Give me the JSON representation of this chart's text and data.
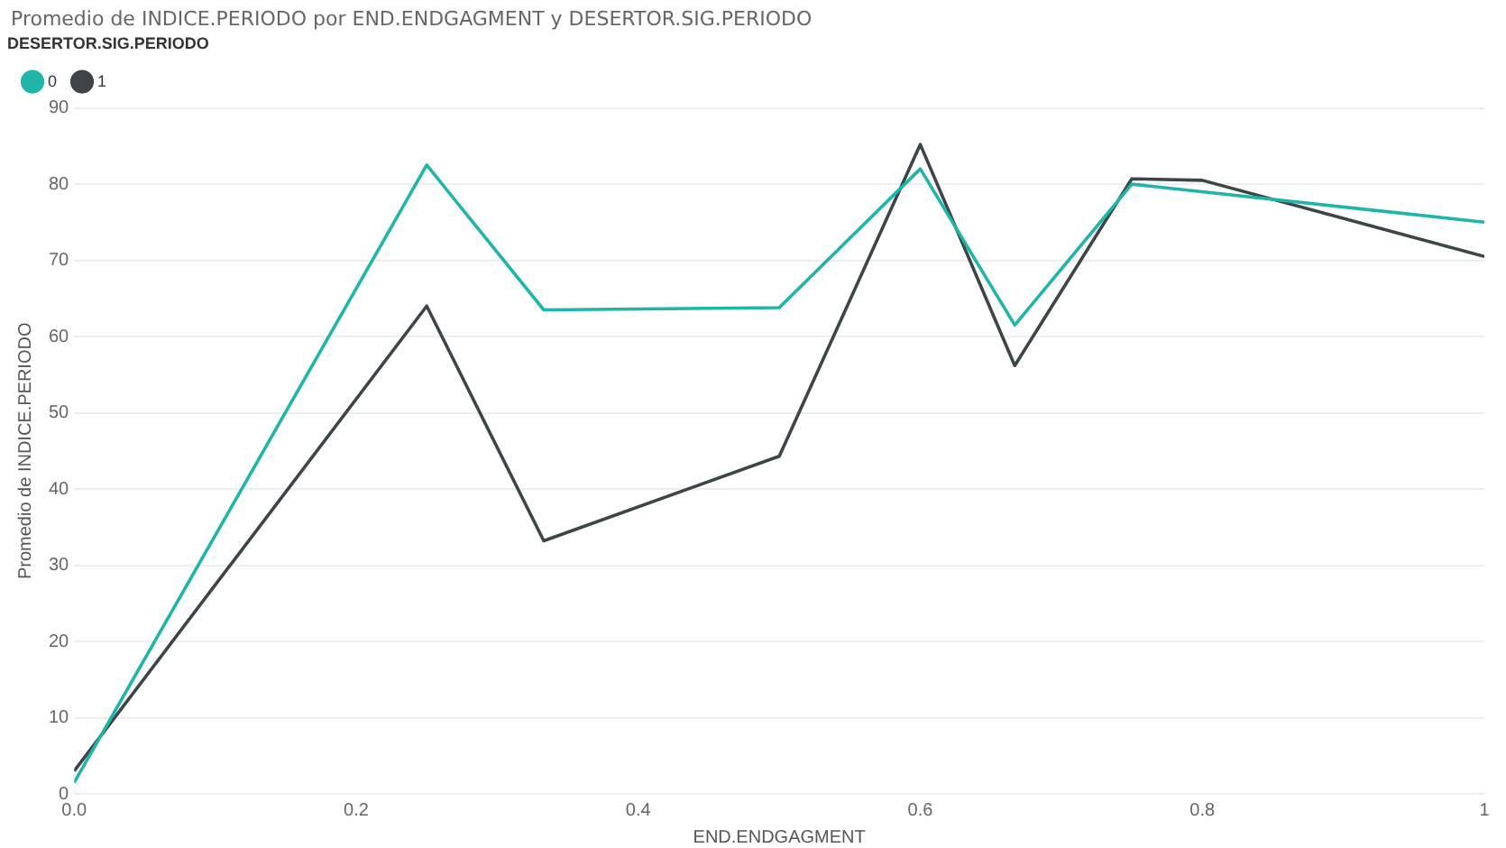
{
  "chart_data": {
    "type": "line",
    "title": "Promedio de INDICE.PERIODO por END.ENDGAGMENT y DESERTOR.SIG.PERIODO",
    "xlabel": "END.ENDGAGMENT",
    "ylabel": "Promedio de INDICE.PERIODO",
    "legend_title": "DESERTOR.SIG.PERIODO",
    "legend": "top left",
    "grid": "y",
    "marker": "none",
    "line_style": "solid",
    "xlim": [
      0,
      1
    ],
    "xticks": [
      {
        "value": 0,
        "label": "0.0"
      },
      {
        "value": 0.2,
        "label": "0.2"
      },
      {
        "value": 0.4,
        "label": "0.4"
      },
      {
        "value": 0.6,
        "label": "0.6"
      },
      {
        "value": 0.8,
        "label": "0.8"
      },
      1
    ],
    "ylim": [
      0,
      90
    ],
    "yticks": [
      0,
      10,
      20,
      30,
      40,
      50,
      60,
      70,
      80,
      90
    ],
    "series": [
      {
        "name": "0",
        "color": "#1fb5a9",
        "x": [
          0,
          0.25,
          0.333,
          0.5,
          0.6,
          0.667,
          0.75,
          1
        ],
        "values": [
          1.5,
          82.5,
          63.5,
          63.8,
          82,
          61.5,
          80,
          75
        ]
      },
      {
        "name": "1",
        "color": "#3d4548",
        "x": [
          0,
          0.25,
          0.333,
          0.5,
          0.6,
          0.667,
          0.75,
          0.8,
          1
        ],
        "values": [
          3,
          64,
          33.2,
          44.3,
          85.2,
          56.2,
          80.7,
          80.5,
          70.5
        ]
      }
    ]
  }
}
